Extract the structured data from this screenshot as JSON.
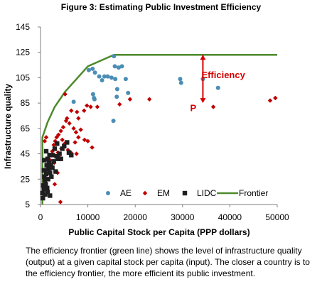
{
  "figure_title": "Figure 3: Estimating Public Investment Efficiency",
  "caption": "The efficiency frontier (green line) shows the level of infrastructure quality (output) at a given capital stock per capita (input). The closer a country is to the efficiency frontier, the more efficient its public investment.",
  "colors": {
    "AE": "#4a8db5",
    "EM": "#c00000",
    "LIDC": "#1f1f1f",
    "Frontier": "#4e8a2c",
    "annotation": "#d40000"
  },
  "chart_data": {
    "type": "scatter",
    "title": "Figure 3: Estimating Public Investment Efficiency",
    "xlabel": "Public Capital Stock per Capita (PPP dollars)",
    "ylabel": "Infrastructure quality",
    "xlim": [
      0,
      50000
    ],
    "ylim": [
      5,
      145
    ],
    "xticks": [
      0,
      10000,
      20000,
      30000,
      40000,
      50000
    ],
    "yticks": [
      5,
      25,
      45,
      65,
      85,
      105,
      125,
      145
    ],
    "grid": false,
    "legend": {
      "placement": "bottom-right",
      "entries": [
        "AE",
        "EM",
        "LIDC",
        "Frontier"
      ]
    },
    "annotations": [
      {
        "text": "Efficiency",
        "color": "#d40000",
        "arrow": {
          "x": 34300,
          "y_from": 123,
          "y_to": 85
        },
        "label_pos": [
          38500,
          107
        ]
      },
      {
        "text": "P",
        "color": "#d40000",
        "at": [
          34000,
          82
        ]
      }
    ],
    "series": [
      {
        "name": "AE",
        "marker": "circle",
        "points": [
          [
            10200,
            111
          ],
          [
            11000,
            112
          ],
          [
            11500,
            109
          ],
          [
            12400,
            106
          ],
          [
            13000,
            103
          ],
          [
            13500,
            106
          ],
          [
            14200,
            106
          ],
          [
            15000,
            105
          ],
          [
            15500,
            122
          ],
          [
            15700,
            114
          ],
          [
            15800,
            104
          ],
          [
            16200,
            96
          ],
          [
            16500,
            113
          ],
          [
            17200,
            114
          ],
          [
            18000,
            104
          ],
          [
            18500,
            93
          ],
          [
            16100,
            90
          ],
          [
            11100,
            92
          ],
          [
            11300,
            89
          ],
          [
            11400,
            88
          ],
          [
            15400,
            71
          ],
          [
            7000,
            86
          ],
          [
            29500,
            104
          ],
          [
            29700,
            101
          ],
          [
            34300,
            104
          ],
          [
            37500,
            97
          ]
        ]
      },
      {
        "name": "EM",
        "marker": "diamond",
        "points": [
          [
            5200,
            92
          ],
          [
            6500,
            79
          ],
          [
            7700,
            78
          ],
          [
            8000,
            73
          ],
          [
            9200,
            79
          ],
          [
            9800,
            83
          ],
          [
            10600,
            82
          ],
          [
            12000,
            82
          ],
          [
            16700,
            84
          ],
          [
            18900,
            88
          ],
          [
            23000,
            88
          ],
          [
            36500,
            82
          ],
          [
            48500,
            87
          ],
          [
            49600,
            89
          ],
          [
            5600,
            73
          ],
          [
            5400,
            71
          ],
          [
            6100,
            69
          ],
          [
            7000,
            65
          ],
          [
            7500,
            62
          ],
          [
            8000,
            58
          ],
          [
            8500,
            64
          ],
          [
            9300,
            56
          ],
          [
            10000,
            55
          ],
          [
            10900,
            50
          ],
          [
            4800,
            66
          ],
          [
            4300,
            63
          ],
          [
            3800,
            60
          ],
          [
            3400,
            58
          ],
          [
            3100,
            55
          ],
          [
            2800,
            52
          ],
          [
            4600,
            56
          ],
          [
            5100,
            53
          ],
          [
            4400,
            49
          ],
          [
            2500,
            47
          ],
          [
            2200,
            44
          ],
          [
            3700,
            46
          ],
          [
            5800,
            48
          ],
          [
            6400,
            46
          ],
          [
            2000,
            40
          ],
          [
            1600,
            37
          ],
          [
            2900,
            38
          ],
          [
            1200,
            58
          ],
          [
            900,
            55
          ],
          [
            7300,
            54
          ],
          [
            4000,
            42
          ],
          [
            3600,
            30
          ],
          [
            3000,
            21
          ],
          [
            7600,
            45
          ],
          [
            4200,
            7
          ]
        ]
      },
      {
        "name": "LIDC",
        "marker": "square",
        "points": [
          [
            400,
            14
          ],
          [
            500,
            10
          ],
          [
            600,
            20
          ],
          [
            700,
            17
          ],
          [
            800,
            27
          ],
          [
            900,
            24
          ],
          [
            1000,
            32
          ],
          [
            1100,
            21
          ],
          [
            1200,
            29
          ],
          [
            1300,
            36
          ],
          [
            1400,
            18
          ],
          [
            1500,
            41
          ],
          [
            1600,
            25
          ],
          [
            1700,
            33
          ],
          [
            1800,
            38
          ],
          [
            1900,
            44
          ],
          [
            2000,
            30
          ],
          [
            2200,
            36
          ],
          [
            2300,
            27
          ],
          [
            2500,
            34
          ],
          [
            2600,
            44
          ],
          [
            2800,
            39
          ],
          [
            3000,
            49
          ],
          [
            3200,
            31
          ],
          [
            3400,
            43
          ],
          [
            3500,
            53
          ],
          [
            3700,
            41
          ],
          [
            4000,
            45
          ],
          [
            4300,
            41
          ],
          [
            4600,
            49
          ],
          [
            5000,
            51
          ],
          [
            5600,
            54
          ],
          [
            6000,
            46
          ],
          [
            6500,
            44
          ],
          [
            1000,
            13
          ],
          [
            700,
            32
          ],
          [
            1500,
            15
          ],
          [
            2000,
            12
          ],
          [
            800,
            40
          ],
          [
            1200,
            47
          ]
        ]
      },
      {
        "name": "Frontier",
        "type": "line",
        "points": [
          [
            400,
            5
          ],
          [
            400,
            58
          ],
          [
            1500,
            70
          ],
          [
            3000,
            82
          ],
          [
            5200,
            94
          ],
          [
            10000,
            114
          ],
          [
            15500,
            123
          ],
          [
            50000,
            123
          ]
        ]
      }
    ]
  }
}
